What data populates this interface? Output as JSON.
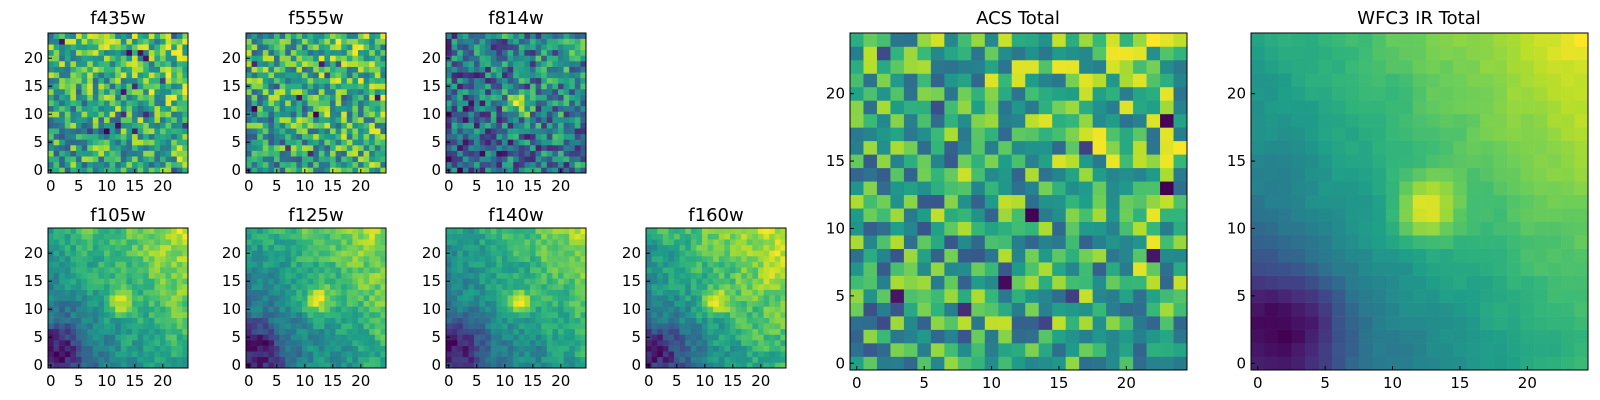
{
  "chart_data": [
    {
      "type": "heatmap",
      "title": "f435w",
      "xticks": [
        "0",
        "5",
        "10",
        "15",
        "20"
      ],
      "yticks": [
        "0",
        "5",
        "10",
        "15",
        "20"
      ],
      "xlim": [
        0,
        25
      ],
      "ylim": [
        0,
        25
      ],
      "grid_size": [
        25,
        25
      ],
      "pattern": "noise",
      "seed": 11,
      "colormap": "viridis"
    },
    {
      "type": "heatmap",
      "title": "f555w",
      "xticks": [
        "0",
        "5",
        "10",
        "15",
        "20"
      ],
      "yticks": [
        "0",
        "5",
        "10",
        "15",
        "20"
      ],
      "xlim": [
        0,
        25
      ],
      "ylim": [
        0,
        25
      ],
      "grid_size": [
        25,
        25
      ],
      "pattern": "noise",
      "seed": 23,
      "colormap": "viridis"
    },
    {
      "type": "heatmap",
      "title": "f814w",
      "xticks": [
        "0",
        "5",
        "10",
        "15",
        "20"
      ],
      "yticks": [
        "0",
        "5",
        "10",
        "15",
        "20"
      ],
      "xlim": [
        0,
        25
      ],
      "ylim": [
        0,
        25
      ],
      "grid_size": [
        25,
        25
      ],
      "pattern": "noise_with_source",
      "seed": 37,
      "colormap": "viridis"
    },
    {
      "type": "heatmap",
      "title": "f105w",
      "xticks": [
        "0",
        "5",
        "10",
        "15",
        "20"
      ],
      "yticks": [
        "0",
        "5",
        "10",
        "15",
        "20"
      ],
      "xlim": [
        0,
        25
      ],
      "ylim": [
        0,
        25
      ],
      "grid_size": [
        25,
        25
      ],
      "pattern": "smooth_with_source",
      "seed": 41,
      "colormap": "viridis"
    },
    {
      "type": "heatmap",
      "title": "f125w",
      "xticks": [
        "0",
        "5",
        "10",
        "15",
        "20"
      ],
      "yticks": [
        "0",
        "5",
        "10",
        "15",
        "20"
      ],
      "xlim": [
        0,
        25
      ],
      "ylim": [
        0,
        25
      ],
      "grid_size": [
        25,
        25
      ],
      "pattern": "smooth_with_source",
      "seed": 53,
      "colormap": "viridis"
    },
    {
      "type": "heatmap",
      "title": "f140w",
      "xticks": [
        "0",
        "5",
        "10",
        "15",
        "20"
      ],
      "yticks": [
        "0",
        "5",
        "10",
        "15",
        "20"
      ],
      "xlim": [
        0,
        25
      ],
      "ylim": [
        0,
        25
      ],
      "grid_size": [
        25,
        25
      ],
      "pattern": "smooth_with_source",
      "seed": 67,
      "colormap": "viridis"
    },
    {
      "type": "heatmap",
      "title": "f160w",
      "xticks": [
        "0",
        "5",
        "10",
        "15",
        "20"
      ],
      "yticks": [
        "0",
        "5",
        "10",
        "15",
        "20"
      ],
      "xlim": [
        0,
        25
      ],
      "ylim": [
        0,
        25
      ],
      "grid_size": [
        25,
        25
      ],
      "pattern": "smooth_with_source",
      "seed": 79,
      "colormap": "viridis"
    },
    {
      "type": "heatmap",
      "title": "ACS Total",
      "xticks": [
        "0",
        "5",
        "10",
        "15",
        "20"
      ],
      "yticks": [
        "0",
        "5",
        "10",
        "15",
        "20"
      ],
      "xlim": [
        0,
        25
      ],
      "ylim": [
        0,
        25
      ],
      "grid_size": [
        25,
        25
      ],
      "pattern": "noise",
      "seed": 97,
      "colormap": "viridis"
    },
    {
      "type": "heatmap",
      "title": "WFC3 IR Total",
      "xticks": [
        "0",
        "5",
        "10",
        "15",
        "20"
      ],
      "yticks": [
        "0",
        "5",
        "10",
        "15",
        "20"
      ],
      "xlim": [
        0,
        25
      ],
      "ylim": [
        0,
        25
      ],
      "grid_size": [
        25,
        25
      ],
      "pattern": "very_smooth_with_source",
      "seed": 113,
      "colormap": "viridis"
    }
  ]
}
